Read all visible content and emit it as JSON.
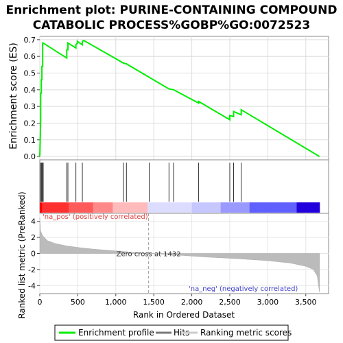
{
  "chart_data": {
    "type": "line",
    "title_lines": [
      "Enrichment plot: PURINE-CONTAINING COMPOUND",
      "CATABOLIC PROCESS%GOBP%GO:0072523"
    ],
    "es_panel": {
      "ylabel": "Enrichment score (ES)",
      "ylim": [
        -0.02,
        0.72
      ],
      "yticks": [
        0.0,
        0.1,
        0.2,
        0.3,
        0.4,
        0.5,
        0.6,
        0.7
      ],
      "ytick_labels": [
        "0.0",
        "0.1",
        "0.2",
        "0.3",
        "0.4",
        "0.5",
        "0.6",
        "0.7"
      ],
      "series": {
        "name": "Enrichment profile",
        "color": "#00ee00",
        "x": [
          0,
          12,
          12,
          20,
          20,
          28,
          28,
          38,
          38,
          45,
          45,
          355,
          355,
          370,
          370,
          475,
          475,
          495,
          495,
          560,
          560,
          580,
          580,
          1100,
          1100,
          1140,
          1140,
          1700,
          1700,
          1760,
          1760,
          2090,
          2090,
          2500,
          2500,
          2550,
          2550,
          2650,
          2650,
          3680
        ],
        "y": [
          0.0,
          0.21,
          0.38,
          0.38,
          0.46,
          0.46,
          0.54,
          0.54,
          0.68,
          0.68,
          0.68,
          0.59,
          0.64,
          0.64,
          0.68,
          0.65,
          0.67,
          0.68,
          0.69,
          0.67,
          0.69,
          0.695,
          0.695,
          0.56,
          0.56,
          0.555,
          0.555,
          0.405,
          0.405,
          0.4,
          0.4,
          0.32,
          0.33,
          0.22,
          0.245,
          0.24,
          0.27,
          0.25,
          0.28,
          0.0
        ]
      }
    },
    "hits": {
      "name": "Hits",
      "positions": [
        12,
        20,
        28,
        38,
        45,
        355,
        370,
        475,
        560,
        1100,
        1140,
        1440,
        1700,
        1760,
        2090,
        2500,
        2550,
        2650
      ]
    },
    "rank_panel": {
      "ylabel": "Ranked list metric (PreRanked)",
      "ylim": [
        -5,
        5
      ],
      "yticks": [
        -4,
        -2,
        0,
        2,
        4
      ],
      "ytick_labels": [
        "-4",
        "-2",
        "0",
        "2",
        "4"
      ],
      "zero_cross_label": "Zero cross at 1432",
      "zero_cross": 1432,
      "pos_label": "'na_pos' (positively correlated)",
      "neg_label": "'na_neg' (negatively correlated)",
      "series_name": "Ranking metric scores",
      "profile_x": [
        0,
        10,
        40,
        100,
        200,
        350,
        500,
        700,
        1000,
        1432,
        1800,
        2200,
        2600,
        3000,
        3300,
        3500,
        3600,
        3650,
        3680
      ],
      "profile_y": [
        4.5,
        2.8,
        2.2,
        1.6,
        1.25,
        0.95,
        0.75,
        0.55,
        0.32,
        0.0,
        -0.2,
        -0.45,
        -0.65,
        -0.9,
        -1.2,
        -1.6,
        -2.0,
        -2.8,
        -4.8
      ]
    },
    "xaxis": {
      "xlabel": "Rank in Ordered Dataset",
      "xlim": [
        0,
        3800
      ],
      "xticks": [
        0,
        500,
        1000,
        1500,
        2000,
        2500,
        3000,
        3500
      ],
      "xtick_labels": [
        "0",
        "500",
        "1,000",
        "1,500",
        "2,000",
        "2,500",
        "3,000",
        "3,500"
      ],
      "n_genes": 3680
    },
    "colorbar": {
      "x": [
        0,
        30,
        380,
        700,
        960,
        1440,
        1420,
        2000,
        2380,
        2760,
        3380,
        3680
      ],
      "colors": [
        "#ff0000",
        "#ff3030",
        "#ff5a5a",
        "#ff8888",
        "#ffbbbb",
        "#e0e0ff",
        "#dcdcff",
        "#c7c7ff",
        "#9999ff",
        "#6060ff",
        "#2200dd"
      ]
    },
    "legend": {
      "items": [
        {
          "label": "Enrichment profile",
          "color": "#00ee00"
        },
        {
          "label": "Hits",
          "color": "#777777"
        },
        {
          "label": "Ranking metric scores",
          "color": "#cccccc"
        }
      ]
    }
  }
}
